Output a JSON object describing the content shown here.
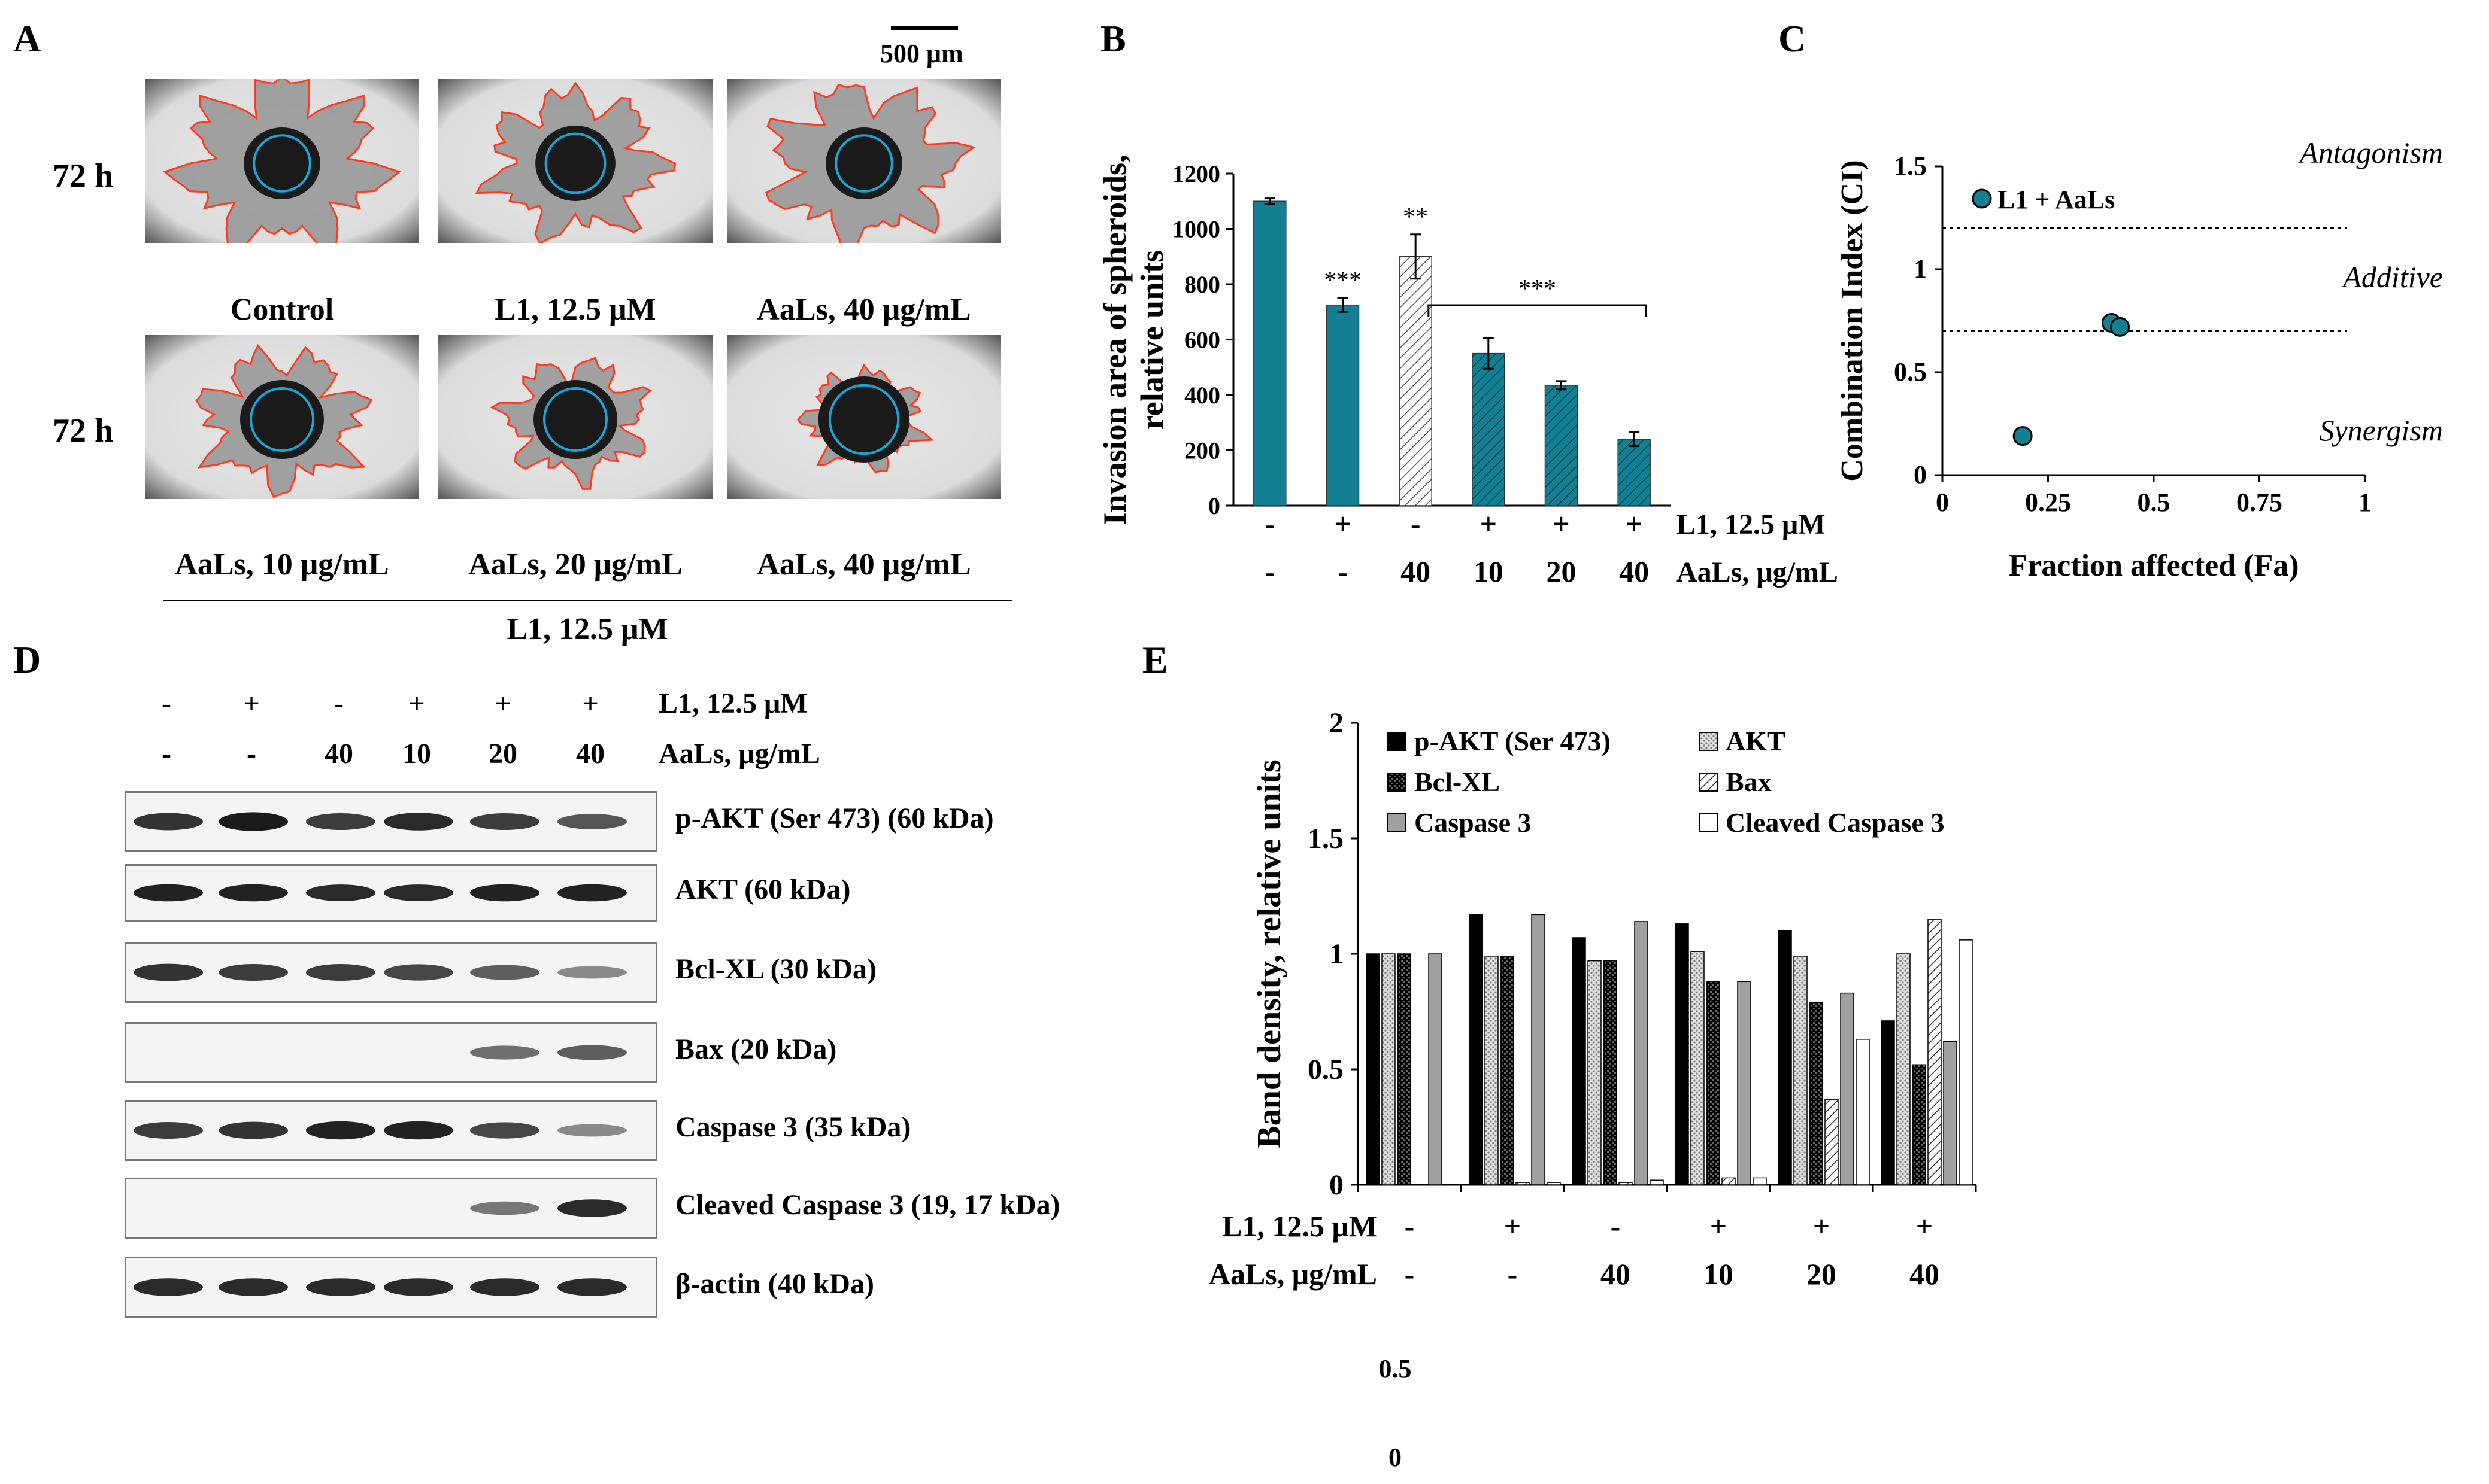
{
  "panel_a": {
    "label": "A",
    "scale_bar": "500 μm",
    "row_label": "72 h",
    "top_row": [
      "Control",
      "L1, 12.5 μM",
      "AaLs, 40 μg/mL"
    ],
    "bottom_row": [
      "AaLs, 10 μg/mL",
      "AaLs, 20 μg/mL",
      "AaLs, 40 μg/mL"
    ],
    "group_label": "L1, 12.5 μM"
  },
  "panel_d": {
    "label": "D",
    "l1_label": "L1, 12.5 μM",
    "aals_label": "AaLs, μg/mL",
    "l1_signs": [
      "-",
      "+",
      "-",
      "+",
      "+",
      "+"
    ],
    "aals_values": [
      "-",
      "-",
      "40",
      "10",
      "20",
      "40"
    ],
    "blots": [
      "p-AKT (Ser 473) (60 kDa)",
      "AKT (60 kDa)",
      "Bcl-XL (30 kDa)",
      "Bax (20 kDa)",
      "Caspase 3 (35 kDa)",
      "Cleaved Caspase 3 (19, 17 kDa)",
      "β-actin (40 kDa)"
    ],
    "band_intensity": [
      [
        0.8,
        0.95,
        0.75,
        0.85,
        0.75,
        0.6
      ],
      [
        0.9,
        0.9,
        0.85,
        0.85,
        0.9,
        0.9
      ],
      [
        0.8,
        0.75,
        0.75,
        0.7,
        0.55,
        0.3
      ],
      [
        0.0,
        0.0,
        0.0,
        0.0,
        0.45,
        0.55
      ],
      [
        0.75,
        0.8,
        0.9,
        0.9,
        0.7,
        0.3
      ],
      [
        0.0,
        0.0,
        0.0,
        0.0,
        0.4,
        0.85
      ],
      [
        0.85,
        0.85,
        0.85,
        0.85,
        0.85,
        0.85
      ]
    ]
  },
  "chart_data": [
    {
      "panel": "B",
      "type": "bar",
      "ylabel_line1": "Invasion area of spheroids,",
      "ylabel_line2": "relative units",
      "ylim": [
        0,
        1200
      ],
      "yticks": [
        0,
        200,
        400,
        600,
        800,
        1000,
        1200
      ],
      "values": [
        1100,
        725,
        900,
        550,
        435,
        240
      ],
      "errors": [
        10,
        25,
        80,
        55,
        15,
        25
      ],
      "patterns": [
        "solid",
        "solid",
        "diag-light",
        "diag-dark",
        "diag-dark",
        "diag-dark"
      ],
      "significance": [
        "",
        "***",
        "**",
        "",
        "",
        ""
      ],
      "bracket_label": "***",
      "l1_row": [
        "-",
        "+",
        "-",
        "+",
        "+",
        "+"
      ],
      "aals_row": [
        "-",
        "-",
        "40",
        "10",
        "20",
        "40"
      ],
      "l1_row_label": "L1, 12.5 μM",
      "aals_row_label": "AaLs, μg/mL",
      "bar_color": "#127f93"
    },
    {
      "panel": "C",
      "type": "scatter",
      "xlabel": "Fraction affected (Fa)",
      "ylabel": "Combination Index (CI)",
      "xlim": [
        0,
        1
      ],
      "ylim": [
        0,
        1.5
      ],
      "xticks": [
        "0",
        "0.25",
        "0.5",
        "0.75",
        "1"
      ],
      "yticks": [
        "0",
        "0.5",
        "1",
        "1.5"
      ],
      "points": [
        [
          0.19,
          0.19
        ],
        [
          0.4,
          0.74
        ],
        [
          0.42,
          0.72
        ]
      ],
      "threshold_lines": [
        1.2,
        0.7
      ],
      "legend": "L1 + AaLs",
      "regions": [
        "Antagonism",
        "Additive",
        "Synergism"
      ],
      "marker_color": "#127f93"
    },
    {
      "panel": "E",
      "type": "bar",
      "ylabel": "Band density, relative units",
      "ylim": [
        0,
        2
      ],
      "yticks": [
        "0",
        "0.5",
        "1",
        "1.5",
        "2"
      ],
      "series": [
        {
          "name": "p-AKT (Ser 473)",
          "values": [
            1.0,
            1.17,
            1.07,
            1.13,
            1.1,
            0.71
          ]
        },
        {
          "name": "AKT",
          "values": [
            1.0,
            0.99,
            0.97,
            1.01,
            0.99,
            1.0
          ]
        },
        {
          "name": "Bcl-XL",
          "values": [
            1.0,
            0.99,
            0.97,
            0.88,
            0.79,
            0.52
          ]
        },
        {
          "name": "Bax",
          "values": [
            0.0,
            0.01,
            0.01,
            0.03,
            0.37,
            1.15
          ]
        },
        {
          "name": "Caspase 3",
          "values": [
            1.0,
            1.17,
            1.14,
            0.88,
            0.83,
            0.62
          ]
        },
        {
          "name": "Cleaved Caspase 3",
          "values": [
            0.0,
            0.01,
            0.02,
            0.03,
            0.63,
            1.06
          ]
        }
      ],
      "l1_row": [
        "-",
        "+",
        "-",
        "+",
        "+",
        "+"
      ],
      "aals_row": [
        "-",
        "-",
        "40",
        "10",
        "20",
        "40"
      ],
      "l1_row_label": "L1, 12.5 μM",
      "aals_row_label": "AaLs, μg/mL",
      "extra_ticks": [
        "0.5",
        "0"
      ]
    }
  ],
  "panel_labels": {
    "b": "B",
    "c": "C",
    "e": "E"
  }
}
